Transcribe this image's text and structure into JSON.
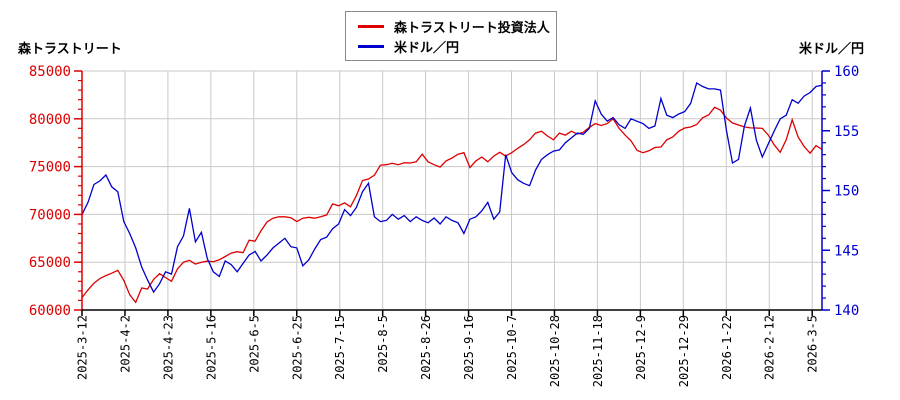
{
  "page": {
    "title_left": "森トラストリート",
    "title_right": "米ドル／円"
  },
  "legend": {
    "items": [
      {
        "label": "森トラストリート投資法人",
        "color": "#dd0000"
      },
      {
        "label": "米ドル／円",
        "color": "#0000cc"
      }
    ]
  },
  "colors": {
    "grid": "#c9c9c9",
    "bottom_axis": "#000000",
    "background": "#ffffff",
    "legend_border": "#8a8a8a"
  },
  "chart_data": {
    "type": "line",
    "title": "",
    "grid": true,
    "legend_position": "top-center",
    "x_tick_labels": [
      "2025-3-12",
      "2025-4-2",
      "2025-4-23",
      "2025-5-16",
      "2025-6-5",
      "2025-6-25",
      "2025-7-15",
      "2025-8-5",
      "2025-8-26",
      "2025-9-16",
      "2025-10-7",
      "2025-10-28",
      "2025-11-18",
      "2025-12-9",
      "2025-12-29",
      "2026-1-22",
      "2026-2-12",
      "2026-3-5"
    ],
    "left_axis": {
      "label": "森トラストリート",
      "min": 60000,
      "max": 85000,
      "tick_values": [
        60000,
        65000,
        70000,
        75000,
        80000,
        85000
      ],
      "minor_step": 1000,
      "color": "#dd0000"
    },
    "right_axis": {
      "label": "米ドル／円",
      "min": 140,
      "max": 160,
      "tick_values": [
        140,
        145,
        150,
        155,
        160
      ],
      "minor_step": 1,
      "color": "#0000cc"
    },
    "series": [
      {
        "name": "森トラストリート投資法人",
        "axis": "left",
        "color": "#dd0000",
        "values": [
          61300,
          62100,
          62800,
          63300,
          63600,
          63850,
          64150,
          63100,
          61600,
          60800,
          62300,
          62200,
          63200,
          63800,
          63400,
          63000,
          64300,
          65000,
          65200,
          64800,
          65000,
          65100,
          65050,
          65250,
          65600,
          65950,
          66100,
          66000,
          67300,
          67200,
          68300,
          69200,
          69600,
          69750,
          69750,
          69650,
          69250,
          69600,
          69700,
          69600,
          69750,
          69950,
          71100,
          70900,
          71200,
          70800,
          72000,
          73550,
          73700,
          74100,
          75150,
          75200,
          75350,
          75200,
          75400,
          75380,
          75500,
          76300,
          75500,
          75200,
          74950,
          75600,
          75900,
          76300,
          76450,
          74900,
          75600,
          76000,
          75500,
          76100,
          76500,
          76100,
          76450,
          76900,
          77300,
          77800,
          78500,
          78700,
          78200,
          77800,
          78500,
          78300,
          78700,
          78400,
          78600,
          79100,
          79500,
          79300,
          79500,
          80000,
          79000,
          78300,
          77700,
          76700,
          76450,
          76650,
          77000,
          77050,
          77800,
          78100,
          78700,
          79040,
          79140,
          79400,
          80100,
          80400,
          81200,
          80900,
          80080,
          79560,
          79350,
          79150,
          79050,
          79040,
          79000,
          78300,
          77260,
          76500,
          77800,
          79900,
          78100,
          77100,
          76400,
          77200,
          76800
        ]
      },
      {
        "name": "米ドル／円",
        "axis": "right",
        "color": "#0000cc",
        "values": [
          148.0,
          149.0,
          150.5,
          150.8,
          151.3,
          150.3,
          149.9,
          147.4,
          146.4,
          145.2,
          143.6,
          142.5,
          141.5,
          142.2,
          143.2,
          143.0,
          145.3,
          146.2,
          148.5,
          145.7,
          146.5,
          144.3,
          143.2,
          142.8,
          144.1,
          143.8,
          143.2,
          143.9,
          144.6,
          144.9,
          144.1,
          144.6,
          145.2,
          145.6,
          146.0,
          145.3,
          145.2,
          143.7,
          144.2,
          145.1,
          145.9,
          146.1,
          146.8,
          147.2,
          148.4,
          147.9,
          148.6,
          149.9,
          150.6,
          147.8,
          147.4,
          147.5,
          148.0,
          147.6,
          147.9,
          147.4,
          147.8,
          147.5,
          147.3,
          147.7,
          147.2,
          147.8,
          147.5,
          147.3,
          146.4,
          147.6,
          147.8,
          148.3,
          149.0,
          147.6,
          148.2,
          153.0,
          151.5,
          150.9,
          150.6,
          150.4,
          151.7,
          152.6,
          153.0,
          153.3,
          153.4,
          154.0,
          154.4,
          154.8,
          154.7,
          155.2,
          157.5,
          156.4,
          155.8,
          156.1,
          155.5,
          155.2,
          156.0,
          155.8,
          155.6,
          155.2,
          155.4,
          157.7,
          156.3,
          156.1,
          156.4,
          156.6,
          157.3,
          159.0,
          158.7,
          158.5,
          158.5,
          158.4,
          155.0,
          152.3,
          152.6,
          155.4,
          156.9,
          154.2,
          152.8,
          153.9,
          155.0,
          156.0,
          156.3,
          157.6,
          157.3,
          157.9,
          158.2,
          158.7,
          158.8
        ]
      }
    ]
  }
}
